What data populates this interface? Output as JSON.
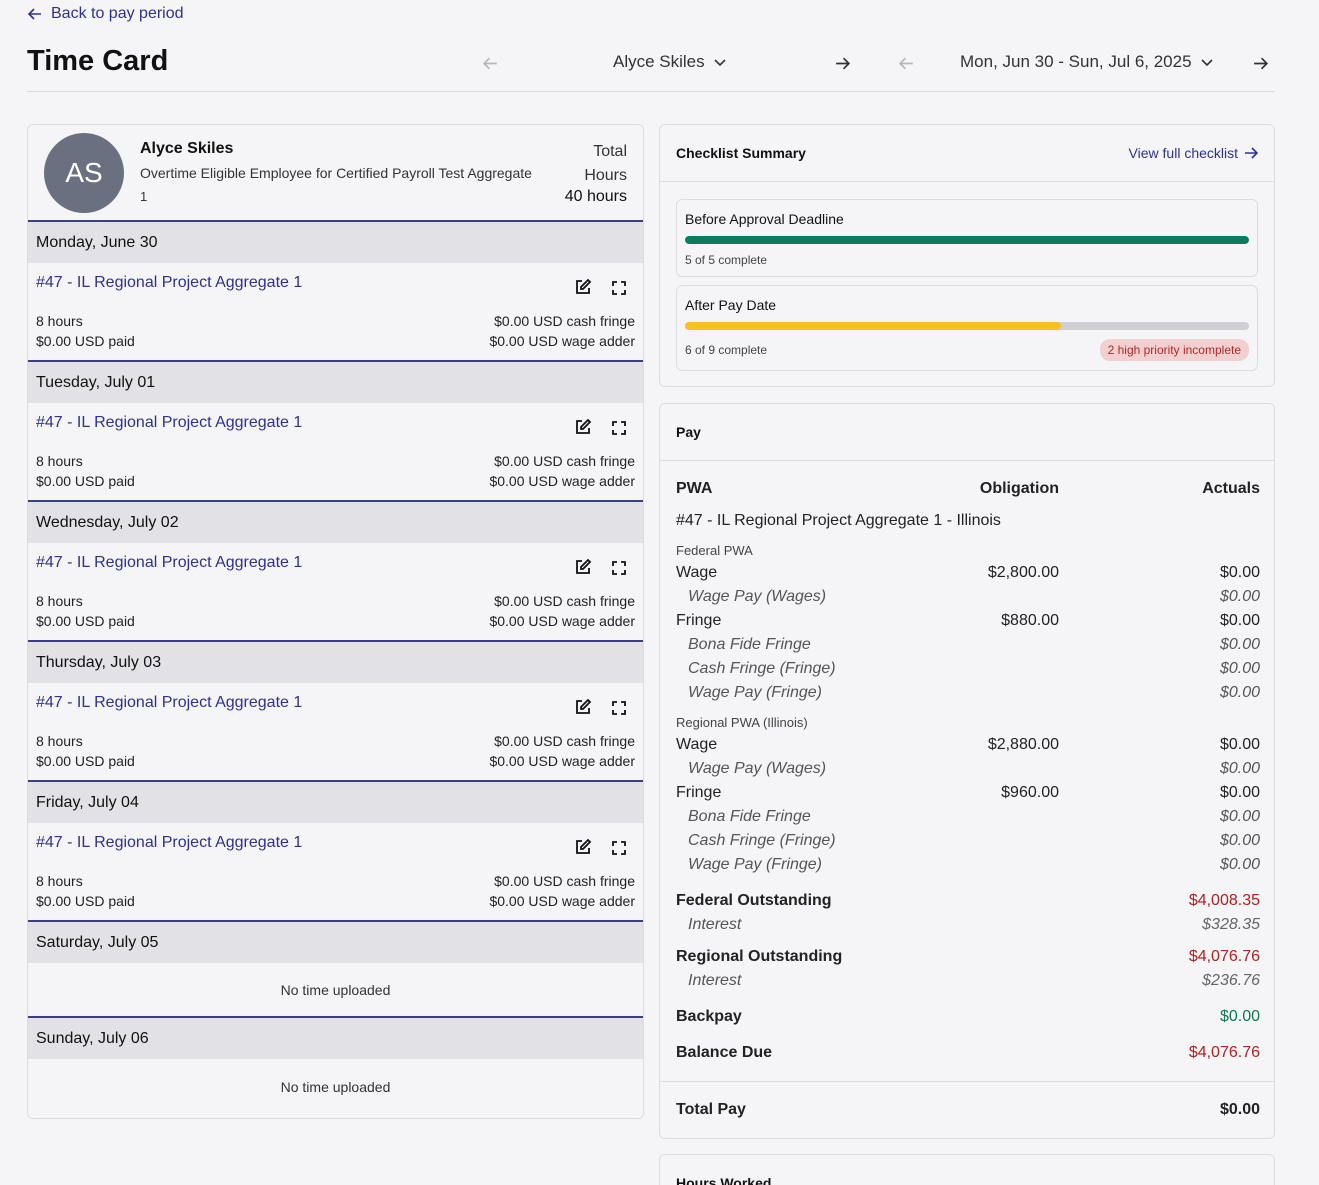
{
  "header": {
    "back_label": "Back to pay period",
    "title": "Time Card",
    "employee_selector": "Alyce Skiles",
    "period_selector": "Mon, Jun 30 - Sun, Jul 6, 2025"
  },
  "employee": {
    "initials": "AS",
    "name": "Alyce Skiles",
    "description": "Overtime Eligible Employee for Certified Payroll Test Aggregate",
    "id": "1",
    "total_label_1": "Total",
    "total_label_2": "Hours",
    "total_hours": "40 hours"
  },
  "days": [
    {
      "label": "Monday, June 30",
      "project": "#47 - IL Regional Project Aggregate 1",
      "hours": "8 hours",
      "paid": "$0.00 USD paid",
      "fringe": "$0.00 USD cash fringe",
      "adder": "$0.00 USD wage adder"
    },
    {
      "label": "Tuesday, July 01",
      "project": "#47 - IL Regional Project Aggregate 1",
      "hours": "8 hours",
      "paid": "$0.00 USD paid",
      "fringe": "$0.00 USD cash fringe",
      "adder": "$0.00 USD wage adder"
    },
    {
      "label": "Wednesday, July 02",
      "project": "#47 - IL Regional Project Aggregate 1",
      "hours": "8 hours",
      "paid": "$0.00 USD paid",
      "fringe": "$0.00 USD cash fringe",
      "adder": "$0.00 USD wage adder"
    },
    {
      "label": "Thursday, July 03",
      "project": "#47 - IL Regional Project Aggregate 1",
      "hours": "8 hours",
      "paid": "$0.00 USD paid",
      "fringe": "$0.00 USD cash fringe",
      "adder": "$0.00 USD wage adder"
    },
    {
      "label": "Friday, July 04",
      "project": "#47 - IL Regional Project Aggregate 1",
      "hours": "8 hours",
      "paid": "$0.00 USD paid",
      "fringe": "$0.00 USD cash fringe",
      "adder": "$0.00 USD wage adder"
    },
    {
      "label": "Saturday, July 05",
      "empty": "No time uploaded"
    },
    {
      "label": "Sunday, July 06",
      "empty": "No time uploaded"
    }
  ],
  "checklist": {
    "title": "Checklist Summary",
    "view_link": "View full checklist",
    "items": [
      {
        "title": "Before Approval Deadline",
        "count": "5 of 5 complete",
        "progress": 1.0,
        "color": "#0e7a5e"
      },
      {
        "title": "After Pay Date",
        "count": "6 of 9 complete",
        "progress": 0.667,
        "color": "#fbbf24",
        "badge": "2 high priority incomplete"
      }
    ]
  },
  "pay": {
    "title": "Pay",
    "col_pwa": "PWA",
    "col_obligation": "Obligation",
    "col_actuals": "Actuals",
    "project": "#47 - IL Regional Project Aggregate 1 - Illinois",
    "federal_label": "Federal PWA",
    "regional_label": "Regional PWA (Illinois)",
    "federal": {
      "wage": "Wage",
      "wage_obligation": "$2,800.00",
      "wage_actual": "$0.00",
      "wage_pay_wages": "Wage Pay (Wages)",
      "wage_pay_wages_val": "$0.00",
      "fringe": "Fringe",
      "fringe_obligation": "$880.00",
      "fringe_actual": "$0.00",
      "bona_fide": "Bona Fide Fringe",
      "bona_fide_val": "$0.00",
      "cash_fringe": "Cash Fringe (Fringe)",
      "cash_fringe_val": "$0.00",
      "wage_pay_fringe": "Wage Pay (Fringe)",
      "wage_pay_fringe_val": "$0.00"
    },
    "regional": {
      "wage": "Wage",
      "wage_obligation": "$2,880.00",
      "wage_actual": "$0.00",
      "wage_pay_wages": "Wage Pay (Wages)",
      "wage_pay_wages_val": "$0.00",
      "fringe": "Fringe",
      "fringe_obligation": "$960.00",
      "fringe_actual": "$0.00",
      "bona_fide": "Bona Fide Fringe",
      "bona_fide_val": "$0.00",
      "cash_fringe": "Cash Fringe (Fringe)",
      "cash_fringe_val": "$0.00",
      "wage_pay_fringe": "Wage Pay (Fringe)",
      "wage_pay_fringe_val": "$0.00"
    },
    "federal_outstanding": "Federal Outstanding",
    "federal_outstanding_val": "$4,008.35",
    "federal_interest": "Interest",
    "federal_interest_val": "$328.35",
    "regional_outstanding": "Regional Outstanding",
    "regional_outstanding_val": "$4,076.76",
    "regional_interest": "Interest",
    "regional_interest_val": "$236.76",
    "backpay": "Backpay",
    "backpay_val": "$0.00",
    "balance_due": "Balance Due",
    "balance_due_val": "$4,076.76",
    "total_pay": "Total Pay",
    "total_pay_val": "$0.00"
  },
  "hours_worked": {
    "title": "Hours Worked"
  }
}
